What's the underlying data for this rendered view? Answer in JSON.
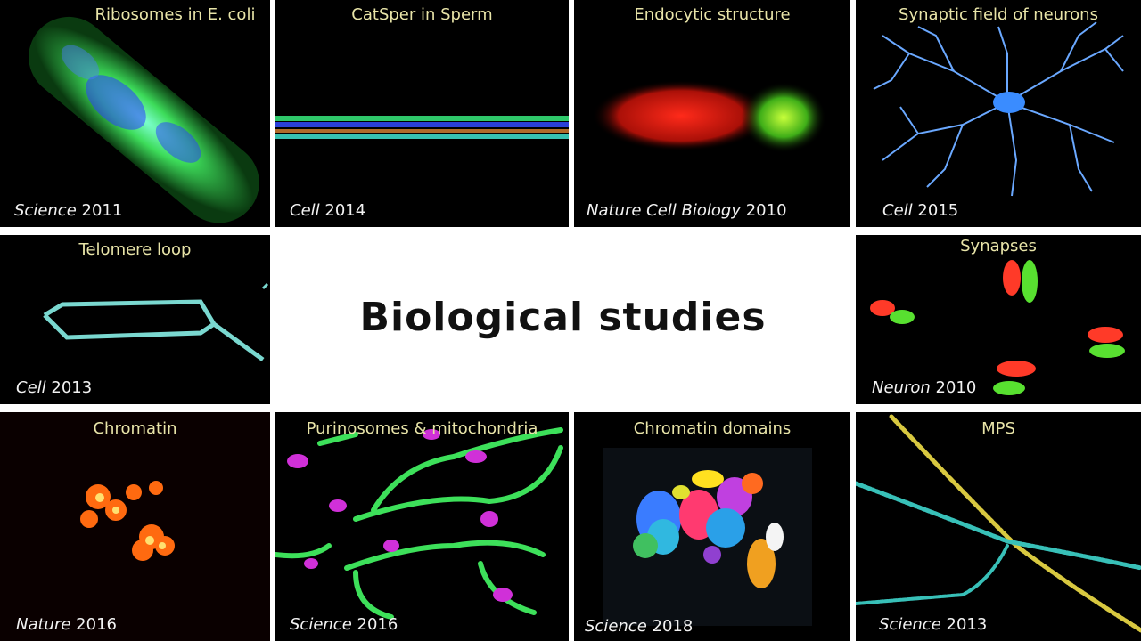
{
  "heading": "Biological studies",
  "tiles": [
    {
      "title": "Ribosomes in E. coli",
      "journal": "Science",
      "year": "2011"
    },
    {
      "title": "CatSper in Sperm",
      "journal": "Cell",
      "year": "2014"
    },
    {
      "title": "Endocytic structure",
      "journal": "Nature Cell Biology",
      "year": "2010"
    },
    {
      "title": "Synaptic field of neurons",
      "journal": "Cell",
      "year": "2015"
    },
    {
      "title": "Telomere loop",
      "journal": "Cell",
      "year": "2013"
    },
    {
      "title": "Synapses",
      "journal": "Neuron",
      "year": "2010"
    },
    {
      "title": "Chromatin",
      "journal": "Nature",
      "year": "2016"
    },
    {
      "title": "Purinosomes & mitochondria",
      "journal": "Science",
      "year": "2016"
    },
    {
      "title": "Chromatin domains",
      "journal": "Science",
      "year": "2018"
    },
    {
      "title": "MPS",
      "journal": "Science",
      "year": "2013"
    }
  ]
}
